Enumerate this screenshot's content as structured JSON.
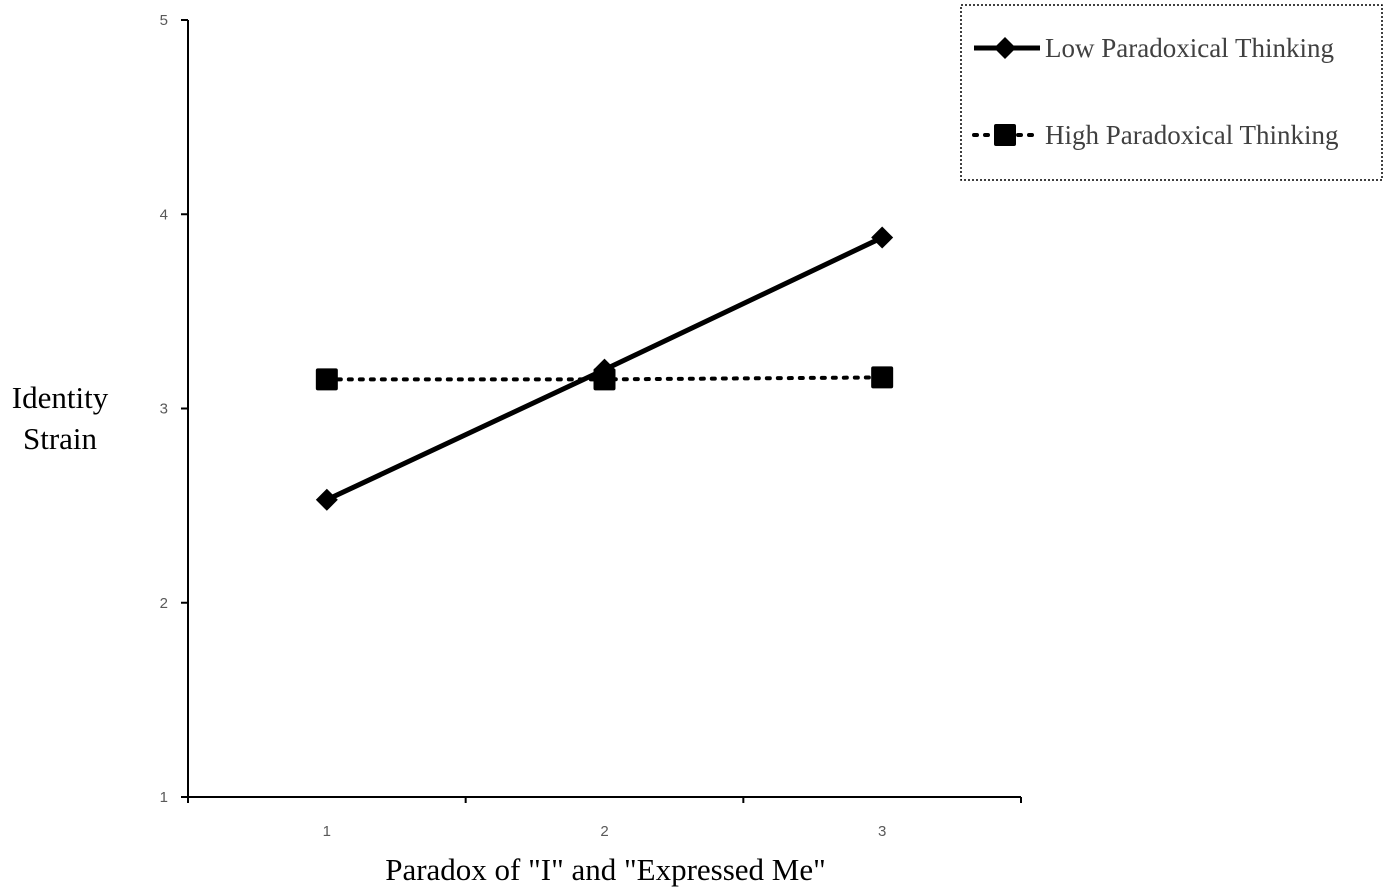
{
  "chart_data": {
    "type": "line",
    "title": "",
    "xlabel": "Paradox of \"I\" and \"Expressed Me\"",
    "ylabel_lines": [
      "Identity",
      "Strain"
    ],
    "x": [
      1,
      2,
      3
    ],
    "x_tick_labels": [
      "1",
      "2",
      "3"
    ],
    "xlim": [
      0.5,
      3.5
    ],
    "y_ticks": [
      1,
      2,
      3,
      4,
      5
    ],
    "ylim": [
      1,
      5
    ],
    "grid": false,
    "legend_position": "top-right",
    "series": [
      {
        "name": "Low Paradoxical Thinking",
        "values": [
          2.53,
          3.2,
          3.88
        ],
        "line_style": "solid",
        "marker": "diamond",
        "color": "#000000"
      },
      {
        "name": "High Paradoxical Thinking",
        "values": [
          3.15,
          3.15,
          3.16
        ],
        "line_style": "dotted",
        "marker": "square",
        "color": "#000000"
      }
    ]
  }
}
